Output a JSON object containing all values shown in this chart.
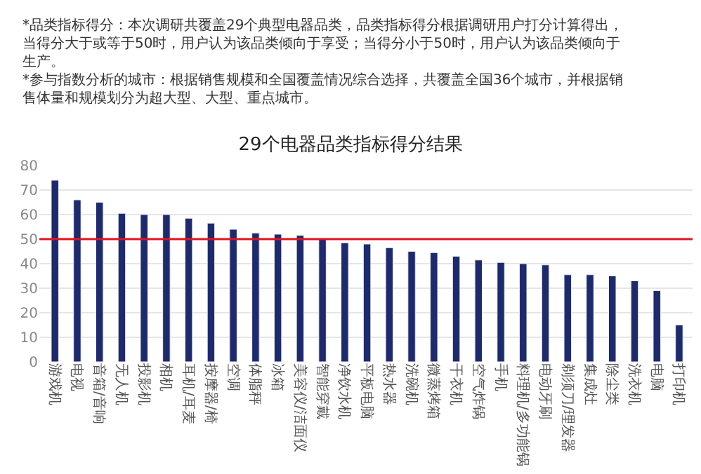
{
  "chart_data": {
    "type": "bar",
    "title": "29个电器品类指标得分结果",
    "annotations": [
      "*品类指标得分：本次调研共覆盖29个典型电器品类，品类指标得分根据调研用户打分计算得出，当得分大于或等于50时，用户认为该品类倾向于享受；当得分小于50时，用户认为该品类倾向于生产。",
      "*参与指数分析的城市：根据销售规模和全国覆盖情况综合选择，共覆盖全国36个城市，并根据销售体量和规模划分为超大型、大型、重点城市。"
    ],
    "categories": [
      "游戏机",
      "电视",
      "音箱/音响",
      "无人机",
      "投影机",
      "相机",
      "耳机/耳麦",
      "按摩器/椅",
      "空调",
      "体脂秤",
      "冰箱",
      "美容仪/洁面仪",
      "智能穿戴",
      "净饮水机",
      "平板电脑",
      "热水器",
      "洗碗机",
      "微蒸烤箱",
      "干衣机",
      "空气炸锅",
      "手机",
      "料理机/多功能锅",
      "电动牙刷",
      "剃须刀/理发器",
      "集成灶",
      "除尘类",
      "洗衣机",
      "电脑",
      "打印机"
    ],
    "values": [
      74,
      66,
      65,
      60.5,
      60,
      60,
      58.5,
      56.5,
      54,
      52.5,
      52,
      51.5,
      50,
      48.5,
      48,
      46.5,
      45,
      44.5,
      43,
      41.5,
      40.5,
      40,
      39.5,
      35.5,
      35.5,
      35,
      33,
      29,
      15
    ],
    "color": "#1f2a6b",
    "ylim": [
      0,
      80
    ],
    "yticks": [
      0,
      10,
      20,
      30,
      40,
      50,
      60,
      70,
      80
    ],
    "grid": "y",
    "ref_lines": [
      {
        "axis": "y",
        "value": 50,
        "color": "#e0141e"
      }
    ]
  }
}
